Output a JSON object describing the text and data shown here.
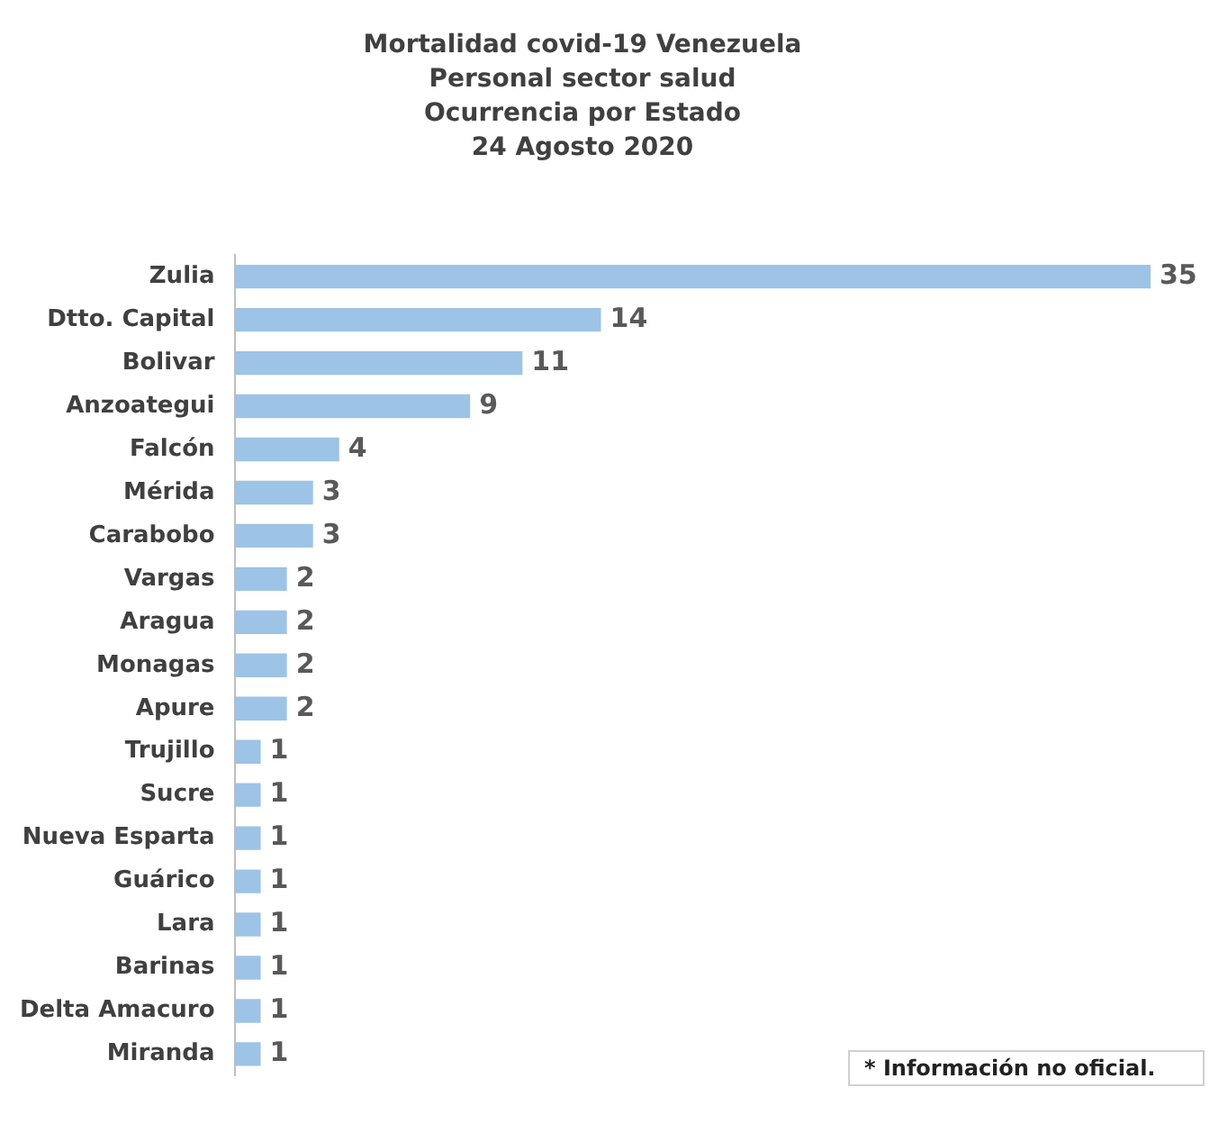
{
  "chart_data": {
    "type": "bar",
    "orientation": "horizontal",
    "title": "Mortalidad covid-19 Venezuela\nPersonal sector salud\nOcurrencia por Estado\n24 Agosto 2020",
    "categories": [
      "Zulia",
      "Dtto. Capital",
      "Bolivar",
      "Anzoategui",
      "Falcón",
      "Mérida",
      "Carabobo",
      "Vargas",
      "Aragua",
      "Monagas",
      "Apure",
      "Trujillo",
      "Sucre",
      "Nueva Esparta",
      "Guárico",
      "Lara",
      "Barinas",
      "Delta Amacuro",
      "Miranda"
    ],
    "values": [
      35,
      14,
      11,
      9,
      4,
      3,
      3,
      2,
      2,
      2,
      2,
      1,
      1,
      1,
      1,
      1,
      1,
      1,
      1
    ],
    "color": "#9dc3e6",
    "data_labels": true,
    "legend": false,
    "tick_labels": "y",
    "annotations": [
      "* Información no oficial."
    ]
  }
}
